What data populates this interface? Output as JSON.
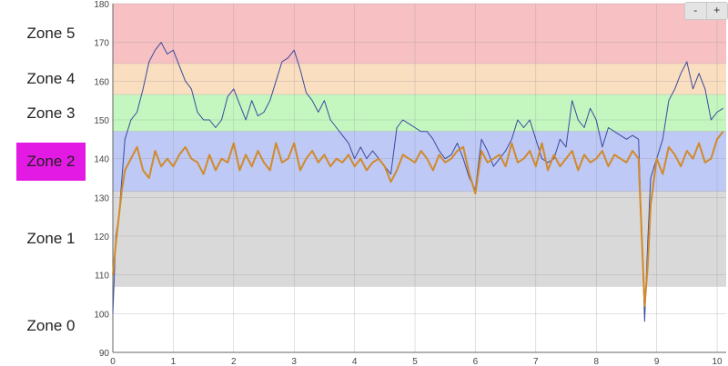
{
  "zones": [
    {
      "label": "Zone 5",
      "min": 164.5,
      "max": 180,
      "color": "#f7c0c2",
      "active": false
    },
    {
      "label": "Zone 4",
      "min": 156.5,
      "max": 164.5,
      "color": "#fadec0",
      "active": false
    },
    {
      "label": "Zone 3",
      "min": 147,
      "max": 156.5,
      "color": "#c4f7c0",
      "active": false
    },
    {
      "label": "Zone 2",
      "min": 131.5,
      "max": 147,
      "color": "#bec9f5",
      "active": true
    },
    {
      "label": "Zone 1",
      "min": 107,
      "max": 131.5,
      "color": "#d9d9d9",
      "active": false
    },
    {
      "label": "Zone 0",
      "min": 90,
      "max": 107,
      "color": "#ffffff",
      "active": false
    }
  ],
  "zoom_controls": {
    "minus": "-",
    "plus": "+"
  },
  "chart_data": {
    "type": "line",
    "title": "",
    "xlabel": "",
    "ylabel": "",
    "xlim": [
      0,
      10.15
    ],
    "ylim": [
      90,
      180
    ],
    "x_ticks": [
      0,
      1,
      2,
      3,
      4,
      5,
      6,
      7,
      8,
      9,
      10
    ],
    "y_ticks": [
      90,
      100,
      110,
      120,
      130,
      140,
      150,
      160,
      170,
      180
    ],
    "grid": true,
    "series": [
      {
        "color": "#3a4a9c",
        "x": [
          0,
          0.05,
          0.1,
          0.15,
          0.2,
          0.3,
          0.4,
          0.5,
          0.6,
          0.7,
          0.8,
          0.9,
          1.0,
          1.1,
          1.2,
          1.3,
          1.4,
          1.5,
          1.6,
          1.7,
          1.8,
          1.9,
          2.0,
          2.1,
          2.2,
          2.3,
          2.4,
          2.5,
          2.6,
          2.7,
          2.8,
          2.9,
          3.0,
          3.1,
          3.2,
          3.3,
          3.4,
          3.5,
          3.6,
          3.7,
          3.8,
          3.9,
          4.0,
          4.1,
          4.2,
          4.3,
          4.4,
          4.5,
          4.6,
          4.7,
          4.8,
          4.9,
          5.0,
          5.1,
          5.2,
          5.3,
          5.4,
          5.5,
          5.6,
          5.7,
          5.8,
          5.9,
          6.0,
          6.1,
          6.2,
          6.3,
          6.4,
          6.5,
          6.6,
          6.7,
          6.8,
          6.9,
          7.0,
          7.1,
          7.2,
          7.3,
          7.4,
          7.5,
          7.6,
          7.7,
          7.8,
          7.9,
          8.0,
          8.1,
          8.2,
          8.3,
          8.4,
          8.5,
          8.6,
          8.7,
          8.8,
          8.85,
          8.9,
          9.0,
          9.1,
          9.2,
          9.3,
          9.4,
          9.5,
          9.6,
          9.7,
          9.8,
          9.9,
          10.0,
          10.1
        ],
        "y": [
          100,
          120,
          125,
          135,
          145,
          150,
          152,
          158,
          165,
          168,
          170,
          167,
          168,
          164,
          160,
          158,
          152,
          150,
          150,
          148,
          150,
          156,
          158,
          154,
          150,
          155,
          151,
          152,
          155,
          160,
          165,
          166,
          168,
          163,
          157,
          155,
          152,
          155,
          150,
          148,
          146,
          144,
          140,
          143,
          140,
          142,
          140,
          138,
          136,
          148,
          150,
          149,
          148,
          147,
          147,
          145,
          142,
          140,
          141,
          144,
          140,
          135,
          132,
          145,
          142,
          138,
          140,
          142,
          145,
          150,
          148,
          150,
          145,
          140,
          139,
          140,
          145,
          143,
          155,
          150,
          148,
          153,
          150,
          143,
          148,
          147,
          146,
          145,
          146,
          145,
          98,
          118,
          135,
          140,
          145,
          155,
          158,
          162,
          165,
          158,
          162,
          158,
          150,
          152,
          153
        ]
      },
      {
        "color": "#d18a2c",
        "x": [
          0,
          0.05,
          0.1,
          0.15,
          0.2,
          0.3,
          0.4,
          0.5,
          0.6,
          0.7,
          0.8,
          0.9,
          1.0,
          1.1,
          1.2,
          1.3,
          1.4,
          1.5,
          1.6,
          1.7,
          1.8,
          1.9,
          2.0,
          2.1,
          2.2,
          2.3,
          2.4,
          2.5,
          2.6,
          2.7,
          2.8,
          2.9,
          3.0,
          3.1,
          3.2,
          3.3,
          3.4,
          3.5,
          3.6,
          3.7,
          3.8,
          3.9,
          4.0,
          4.1,
          4.2,
          4.3,
          4.4,
          4.5,
          4.6,
          4.7,
          4.8,
          4.9,
          5.0,
          5.1,
          5.2,
          5.3,
          5.4,
          5.5,
          5.6,
          5.7,
          5.8,
          5.9,
          6.0,
          6.1,
          6.2,
          6.3,
          6.4,
          6.5,
          6.6,
          6.7,
          6.8,
          6.9,
          7.0,
          7.1,
          7.2,
          7.3,
          7.4,
          7.5,
          7.6,
          7.7,
          7.8,
          7.9,
          8.0,
          8.1,
          8.2,
          8.3,
          8.4,
          8.5,
          8.6,
          8.7,
          8.8,
          8.85,
          8.9,
          9.0,
          9.1,
          9.2,
          9.3,
          9.4,
          9.5,
          9.6,
          9.7,
          9.8,
          9.9,
          10.0,
          10.1
        ],
        "y": [
          110,
          118,
          125,
          132,
          137,
          140,
          143,
          137,
          135,
          142,
          138,
          140,
          138,
          141,
          143,
          140,
          139,
          136,
          141,
          137,
          140,
          139,
          144,
          137,
          141,
          138,
          142,
          139,
          137,
          144,
          139,
          140,
          144,
          137,
          140,
          142,
          139,
          141,
          138,
          140,
          139,
          141,
          138,
          140,
          137,
          139,
          140,
          138,
          134,
          137,
          141,
          140,
          139,
          142,
          140,
          137,
          141,
          139,
          140,
          142,
          143,
          136,
          131,
          142,
          139,
          140,
          141,
          138,
          144,
          139,
          140,
          142,
          138,
          144,
          137,
          141,
          138,
          140,
          142,
          137,
          141,
          139,
          140,
          142,
          138,
          141,
          140,
          139,
          142,
          140,
          102,
          112,
          128,
          140,
          136,
          143,
          141,
          138,
          142,
          140,
          144,
          139,
          140,
          145,
          147
        ]
      }
    ]
  }
}
